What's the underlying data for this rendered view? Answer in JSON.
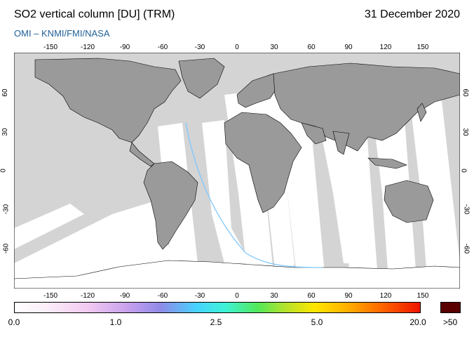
{
  "header": {
    "title": "SO2 vertical column [DU] (TRM)",
    "date": "31 December 2020",
    "source": "OMI  –  KNMI/FMI/NASA"
  },
  "axes": {
    "lon_ticks_top": [
      "-150",
      "-120",
      "-90",
      "-60",
      "-30",
      "0",
      "30",
      "60",
      "90",
      "120",
      "150"
    ],
    "lon_ticks_bottom": [
      "-150",
      "-120",
      "-90",
      "-60",
      "-30",
      "0",
      "30",
      "60",
      "90",
      "120",
      "150"
    ],
    "lat_ticks_left": [
      "60",
      "30",
      "0",
      "-30",
      "-60"
    ],
    "lat_ticks_right": [
      "60",
      "30",
      "0",
      "-30",
      "-60"
    ]
  },
  "colorbar": {
    "labels": [
      "0.0",
      "1.0",
      "2.5",
      "5.0",
      "20.0"
    ],
    "over_label": ">50"
  },
  "colors": {
    "land": "#9a9a9a",
    "no_data": "#d4d4d4",
    "data_bg": "#ffffff",
    "subtitle": "#1f5f96"
  }
}
